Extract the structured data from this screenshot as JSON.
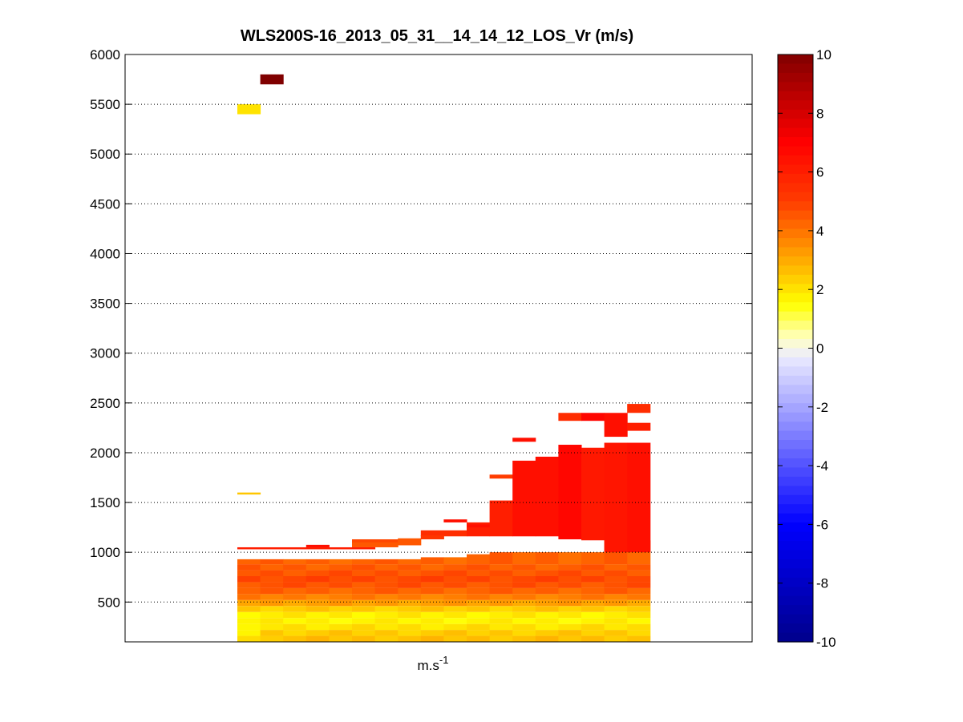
{
  "chart_data": {
    "type": "heatmap",
    "title": "WLS200S-16_2013_05_31__14_14_12_LOS_Vr (m/s)",
    "xlabel_base": "m.s",
    "xlabel_sup": "-1",
    "ylabel": "",
    "ylim": [
      100,
      6000
    ],
    "y_ticks": [
      500,
      1000,
      1500,
      2000,
      2500,
      3000,
      3500,
      4000,
      4500,
      5000,
      5500,
      6000
    ],
    "grid": "horizontal dotted",
    "colorbar": {
      "range": [
        -10,
        10
      ],
      "ticks": [
        -10,
        -8,
        -6,
        -4,
        -2,
        0,
        2,
        4,
        6,
        8,
        10
      ],
      "levels": 64,
      "placement": "right"
    },
    "x_columns": 18,
    "x_note": "columns are sequential profiles, no x tick labels shown",
    "cells": [
      {
        "x0": 0,
        "x1": 1,
        "y0": 5700,
        "y1": 5800,
        "v": 10
      },
      {
        "x0": -1,
        "x1": 0,
        "y0": 5400,
        "y1": 5500,
        "v": 2
      },
      {
        "x0": -1,
        "x1": 0,
        "y0": 1580,
        "y1": 1600,
        "v": 2.5
      },
      {
        "x0": -1,
        "x1": 5,
        "y0": 1030,
        "y1": 1050,
        "v": 6
      },
      {
        "x0": 2,
        "x1": 3,
        "y0": 1050,
        "y1": 1075,
        "v": 6.5
      },
      {
        "x0": 4,
        "x1": 6,
        "y0": 1050,
        "y1": 1110,
        "v": 4.5
      },
      {
        "x0": 4,
        "x1": 6,
        "y0": 1100,
        "y1": 1130,
        "v": 4.8
      },
      {
        "x0": 6,
        "x1": 7,
        "y0": 1070,
        "y1": 1140,
        "v": 4.5
      },
      {
        "x0": 7,
        "x1": 9,
        "y0": 1160,
        "y1": 1220,
        "v": 5.5
      },
      {
        "x0": 7,
        "x1": 8,
        "y0": 1130,
        "y1": 1170,
        "v": 5.2
      },
      {
        "x0": 8,
        "x1": 9,
        "y0": 1300,
        "y1": 1330,
        "v": 6.5
      },
      {
        "x0": 9,
        "x1": 10,
        "y0": 1160,
        "y1": 1300,
        "v": 6
      },
      {
        "x0": 9,
        "x1": 10,
        "y0": 1250,
        "y1": 1280,
        "v": 6.5
      },
      {
        "x0": 10,
        "x1": 11,
        "y0": 1160,
        "y1": 1520,
        "v": 6
      },
      {
        "x0": 10,
        "x1": 11,
        "y0": 1740,
        "y1": 1780,
        "v": 5
      },
      {
        "x0": 11,
        "x1": 12,
        "y0": 1160,
        "y1": 1920,
        "v": 6.5
      },
      {
        "x0": 11,
        "x1": 12,
        "y0": 2110,
        "y1": 2150,
        "v": 6.5
      },
      {
        "x0": 12,
        "x1": 13,
        "y0": 1160,
        "y1": 1960,
        "v": 6.5
      },
      {
        "x0": 13,
        "x1": 14,
        "y0": 1130,
        "y1": 2080,
        "v": 6.8
      },
      {
        "x0": 13,
        "x1": 14,
        "y0": 2320,
        "y1": 2400,
        "v": 5.5
      },
      {
        "x0": 14,
        "x1": 15,
        "y0": 1120,
        "y1": 2050,
        "v": 6.2
      },
      {
        "x0": 14,
        "x1": 15,
        "y0": 2320,
        "y1": 2400,
        "v": 6.8
      },
      {
        "x0": 15,
        "x1": 16,
        "y0": 1000,
        "y1": 2100,
        "v": 6.3
      },
      {
        "x0": 15,
        "x1": 16,
        "y0": 2160,
        "y1": 2400,
        "v": 6.5
      },
      {
        "x0": 16,
        "x1": 17,
        "y0": 1000,
        "y1": 2100,
        "v": 6.5
      },
      {
        "x0": 16,
        "x1": 17,
        "y0": 2220,
        "y1": 2300,
        "v": 6
      },
      {
        "x0": 16,
        "x1": 17,
        "y0": 2400,
        "y1": 2490,
        "v": 5.5
      }
    ],
    "lower_block": {
      "x0": -1,
      "x1": 17,
      "profile": [
        {
          "y0": 100,
          "y1": 160,
          "v": 2.6
        },
        {
          "y0": 160,
          "y1": 220,
          "v": 2.4
        },
        {
          "y0": 220,
          "y1": 280,
          "v": 2.0
        },
        {
          "y0": 280,
          "y1": 340,
          "v": 1.7
        },
        {
          "y0": 340,
          "y1": 400,
          "v": 1.8
        },
        {
          "y0": 400,
          "y1": 460,
          "v": 2.4
        },
        {
          "y0": 460,
          "y1": 520,
          "v": 3.2
        },
        {
          "y0": 520,
          "y1": 580,
          "v": 3.8
        },
        {
          "y0": 580,
          "y1": 640,
          "v": 4.3
        },
        {
          "y0": 640,
          "y1": 700,
          "v": 4.6
        },
        {
          "y0": 700,
          "y1": 760,
          "v": 4.8
        },
        {
          "y0": 760,
          "y1": 820,
          "v": 4.6
        },
        {
          "y0": 820,
          "y1": 880,
          "v": 4.4
        },
        {
          "y0": 880,
          "y1": 930,
          "v": 4.3
        }
      ],
      "top_by_column": [
        930,
        930,
        930,
        930,
        930,
        930,
        930,
        930,
        950,
        950,
        980,
        1000,
        1000,
        1000,
        1000,
        1000,
        1120,
        1120
      ]
    }
  }
}
